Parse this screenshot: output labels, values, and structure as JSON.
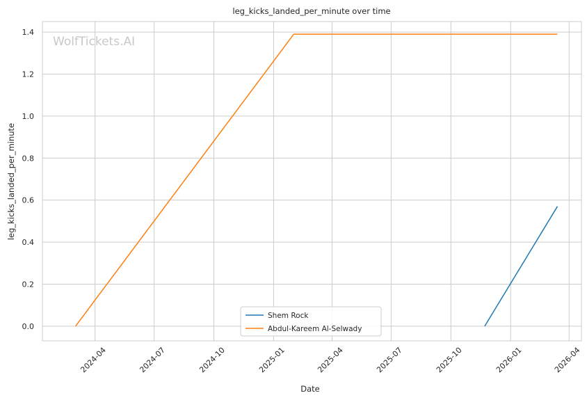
{
  "chart_data": {
    "type": "line",
    "title": "leg_kicks_landed_per_minute over time",
    "xlabel": "Date",
    "ylabel": "leg_kicks_landed_per_minute",
    "watermark": "WolfTickets.AI",
    "xlim": [
      "2024-01-11",
      "2026-04-20"
    ],
    "ylim": [
      -0.07,
      1.45
    ],
    "x_ticks": [
      "2024-04",
      "2024-07",
      "2024-10",
      "2025-01",
      "2025-04",
      "2025-07",
      "2025-10",
      "2026-01",
      "2026-04"
    ],
    "y_ticks": [
      0.0,
      0.2,
      0.4,
      0.6,
      0.8,
      1.0,
      1.2,
      1.4
    ],
    "y_tick_labels": [
      "0.0",
      "0.2",
      "0.4",
      "0.6",
      "0.8",
      "1.0",
      "1.2",
      "1.4"
    ],
    "grid": true,
    "legend_position": "bottom-center",
    "series": [
      {
        "name": "Shem Rock",
        "color": "#1f77b4",
        "points": [
          {
            "x": "2025-11-22",
            "y": 0.0
          },
          {
            "x": "2026-03-14",
            "y": 0.57
          }
        ]
      },
      {
        "name": "Abdul-Kareem Al-Selwady",
        "color": "#ff7f0e",
        "points": [
          {
            "x": "2024-03-02",
            "y": 0.0
          },
          {
            "x": "2025-02-01",
            "y": 1.39
          },
          {
            "x": "2026-03-14",
            "y": 1.39
          }
        ]
      }
    ]
  }
}
